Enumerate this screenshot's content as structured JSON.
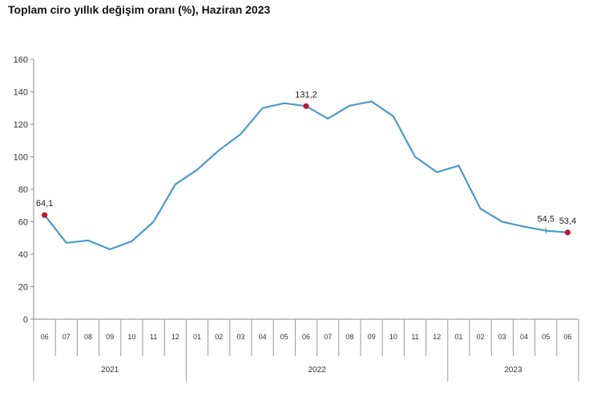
{
  "chart_data": {
    "type": "line",
    "title": "Toplam ciro yıllık değişim oranı (%), Haziran 2023",
    "xlabel": "",
    "ylabel": "",
    "ylim": [
      0,
      160
    ],
    "y_ticks": [
      "0",
      "20",
      "40",
      "60",
      "80",
      "100",
      "120",
      "140",
      "160"
    ],
    "grid": false,
    "legend": "none",
    "line_color": "#4a9acb",
    "marker_color": "#c0143c",
    "categories": [
      "06",
      "07",
      "08",
      "09",
      "10",
      "11",
      "12",
      "01",
      "02",
      "03",
      "04",
      "05",
      "06",
      "07",
      "08",
      "09",
      "10",
      "11",
      "12",
      "01",
      "02",
      "03",
      "04",
      "05",
      "06"
    ],
    "years": [
      {
        "label": "2021",
        "span": 7
      },
      {
        "label": "2022",
        "span": 12
      },
      {
        "label": "2023",
        "span": 6
      }
    ],
    "series": [
      {
        "values": [
          64.1,
          47,
          48.5,
          43,
          48,
          60,
          83,
          92,
          104,
          114,
          130,
          133,
          131.2,
          123.5,
          131.5,
          134,
          125,
          100,
          90.5,
          94.5,
          68,
          60,
          57,
          54.5,
          53.4
        ]
      }
    ],
    "data_labels": [
      {
        "index": 0,
        "text": "64,1",
        "marker": true
      },
      {
        "index": 12,
        "text": "131,2",
        "marker": true
      },
      {
        "index": 23,
        "text": "54,5",
        "marker": false
      },
      {
        "index": 24,
        "text": "53,4",
        "marker": true
      }
    ]
  }
}
